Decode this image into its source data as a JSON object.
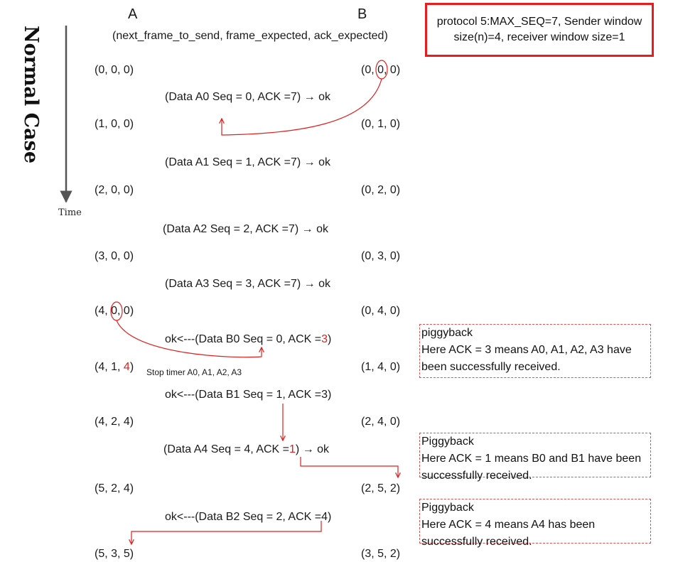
{
  "headers": {
    "station_a": "A",
    "station_b": "B",
    "tuple_legend": "(next_frame_to_send, frame_expected, ack_expected)"
  },
  "side_title": "Normal Case",
  "time_label": "Time",
  "protocol_box": "protocol 5:MAX_SEQ=7, Sender window size(n)=4, receiver  window size=1",
  "a_states": [
    {
      "pre": "(0, 0, 0)"
    },
    {
      "pre": "(1, 0, 0)"
    },
    {
      "pre": "(2, 0, 0)"
    },
    {
      "pre": "(3, 0, 0)"
    },
    {
      "pre": "(4, ",
      "circ": "0",
      "post": ", 0)"
    },
    {
      "pre": "(4, 1, ",
      "red": "4",
      "post": ")"
    },
    {
      "pre": "(4, 2, 4)"
    },
    {
      "pre": "(5, 2, 4)"
    },
    {
      "pre": "(5, 3, 5)"
    }
  ],
  "b_states": [
    {
      "pre": "(0, ",
      "circ": "0",
      "post": ", 0)"
    },
    {
      "pre": "(0, 1, 0)"
    },
    {
      "pre": "(0, 2, 0)"
    },
    {
      "pre": "(0, 3, 0)"
    },
    {
      "pre": "(0, 4, 0)"
    },
    {
      "pre": "(1, 4, 0)"
    },
    {
      "pre": "(2, 4, 0)"
    },
    {
      "pre": "(2, 5, 2)"
    },
    {
      "pre": "(3, 5, 2)"
    }
  ],
  "messages": [
    {
      "pre": "(Data A0 Seq = 0, ACK =7) ",
      "arrow": "→",
      "post": " ok"
    },
    {
      "pre": "(Data A1 Seq = 1, ACK =7) ",
      "arrow": "→",
      "post": " ok"
    },
    {
      "pre": "(Data A2 Seq = 2, ACK =7) ",
      "arrow": "→",
      "post": " ok"
    },
    {
      "pre": "(Data A3 Seq = 3, ACK =7) ",
      "arrow": "→",
      "post": " ok"
    },
    {
      "pre": "ok<---(Data B0 Seq = 0, ACK =",
      "red": "3",
      "post": ")"
    },
    {
      "pre": "ok<---(Data B1 Seq = 1, ACK =3)"
    },
    {
      "pre": "(Data A4 Seq = 4, ACK =",
      "red": "1",
      "post": ") ",
      "arrow": "→",
      "post2": " ok"
    },
    {
      "pre": "ok<---(Data B2 Seq = 2, ACK =4)"
    }
  ],
  "stop_timer": "Stop timer A0, A1, A2, A3",
  "notes": [
    {
      "title": "piggyback",
      "body": "Here ACK = 3 means A0, A1, A2, A3 have been successfully received."
    },
    {
      "title": "Piggyback",
      "body": "Here ACK = 1 means B0 and B1 have been successfully received."
    },
    {
      "title": "Piggyback",
      "body": "Here ACK = 4 means A4 has been successfully received."
    }
  ],
  "colors": {
    "accent": "#e02020",
    "timeline": "#555555",
    "box_border": "#e81c1c"
  }
}
